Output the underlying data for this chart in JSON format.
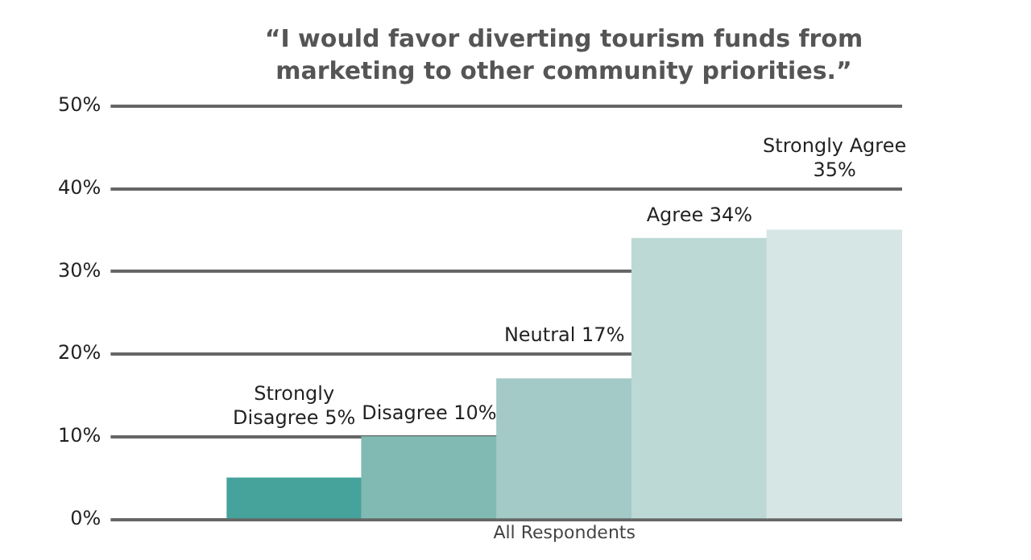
{
  "chart_data": {
    "type": "bar",
    "title": "“I would favor diverting tourism funds from marketing to other community priorities.”",
    "xlabel": "All Respondents",
    "categories": [
      null,
      null,
      null,
      null,
      null
    ],
    "values": [
      5,
      10,
      17,
      34,
      35
    ],
    "colors": [
      "#45a39b",
      "#80bab3",
      "#a3cac6",
      "#bcd9d5",
      "#d6e6e4"
    ],
    "value_labels": [
      "Strongly Disagree 5%",
      "Disagree 10%",
      "Neutral 17%",
      "Agree 34%",
      "Strongly Agree 35%"
    ],
    "ylim": [
      0,
      50
    ],
    "yticks": [
      {
        "value": 0,
        "label": "0%"
      },
      {
        "value": 10,
        "label": "10%"
      },
      {
        "value": 20,
        "label": "20%"
      },
      {
        "value": 30,
        "label": "30%"
      },
      {
        "value": 40,
        "label": "40%"
      },
      {
        "value": 50,
        "label": "50%"
      }
    ],
    "grid": "y",
    "legend": false
  }
}
